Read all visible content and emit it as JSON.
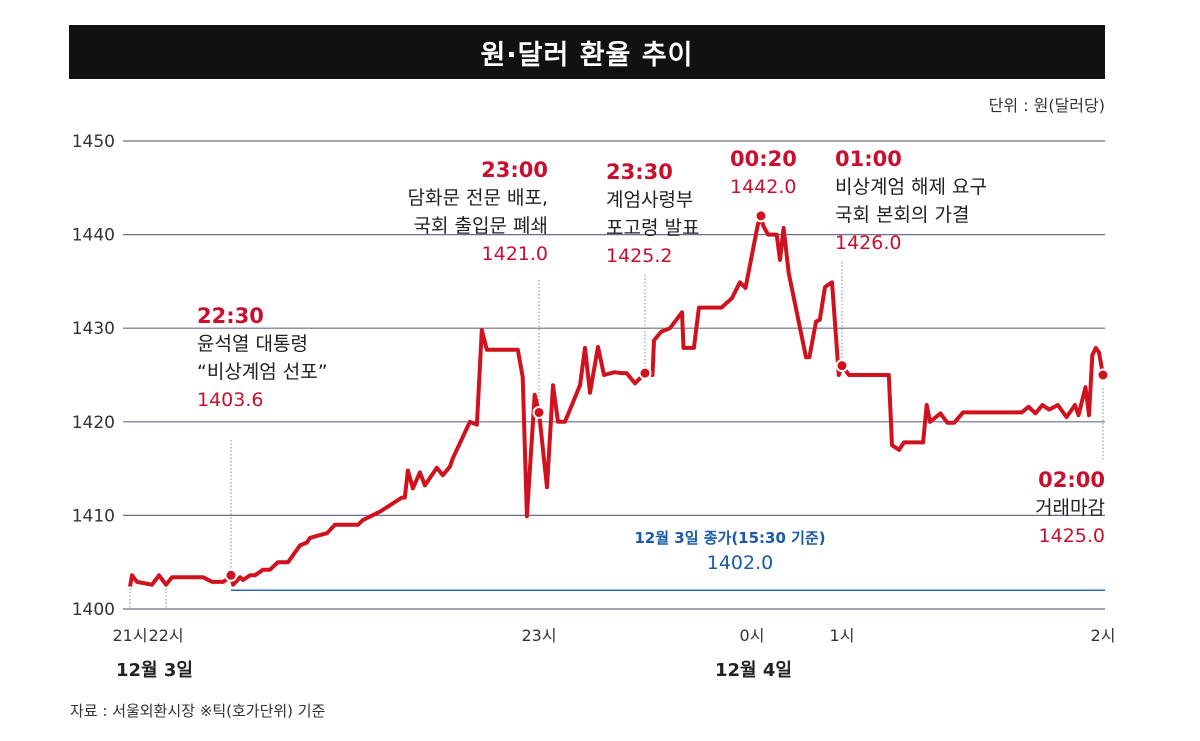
{
  "title": "원·달러 환율 추이",
  "unit_label": "단위 : 원(달러당)",
  "source": "자료 : 서울외환시장 ※틱(호가단위) 기준",
  "dates": [
    "12월 3일",
    "12월 4일"
  ],
  "colors": {
    "line": "#d0121e",
    "reference": "#2a6bb5",
    "grid": "#6e6c8c"
  },
  "annotations": [
    {
      "time": "22:30",
      "lines": [
        "윤석열 대통령",
        "“비상계엄 선포”"
      ],
      "value": "1403.6"
    },
    {
      "time": "23:00",
      "lines": [
        "담화문 전문 배포,",
        "국회 출입문 폐쇄"
      ],
      "value": "1421.0"
    },
    {
      "time": "23:30",
      "lines": [
        "계엄사령부",
        "포고령 발표"
      ],
      "value": "1425.2"
    },
    {
      "time": "00:20",
      "lines": [],
      "value": "1442.0"
    },
    {
      "time": "01:00",
      "lines": [
        "비상계엄 해제 요구",
        "국회 본회의 가결"
      ],
      "value": "1426.0"
    },
    {
      "time": "02:00",
      "lines": [
        "거래마감"
      ],
      "value": "1425.0"
    }
  ],
  "reference": {
    "label": "12월 3일 종가(15:30 기준)",
    "value": "1402.0"
  },
  "chart_data": {
    "type": "line",
    "title": "원·달러 환율 추이",
    "xlabel": "",
    "ylabel": "",
    "ylim": [
      1400,
      1450
    ],
    "yticks": [
      "1400",
      "1410",
      "1420",
      "1430",
      "1440",
      "1450"
    ],
    "xticks": [
      "21시",
      "22시",
      "23시",
      "0시",
      "1시",
      "2시"
    ],
    "grid": true,
    "reference_line": 1402.0,
    "highlight_points": [
      [
        "22:30:00",
        1403.6
      ],
      [
        "23:00:00",
        1421.0
      ],
      [
        "23:30:00",
        1425.2
      ],
      [
        "00:20:00",
        1442.0
      ],
      [
        "01:00:00",
        1426.0
      ],
      [
        "02:00:00",
        1425.0
      ]
    ],
    "series": [
      {
        "values": [
          [
            "21:00:00",
            1402.4
          ],
          [
            "21:03:20",
            1403.6
          ],
          [
            "21:11:40",
            1402.9
          ],
          [
            "21:36:40",
            1402.6
          ],
          [
            "21:48:20",
            1403.6
          ],
          [
            "22:00:00",
            1402.6
          ],
          [
            "22:02:46",
            1403.4
          ],
          [
            "22:17:05",
            1403.4
          ],
          [
            "22:21:14",
            1402.9
          ],
          [
            "22:26:18",
            1402.9
          ],
          [
            "22:29:32",
            1403.4
          ],
          [
            "22:30:00",
            1403.6
          ],
          [
            "22:30:12",
            1402.6
          ],
          [
            "22:30:53",
            1403.4
          ],
          [
            "22:31:10",
            1403.1
          ],
          [
            "22:31:51",
            1403.6
          ],
          [
            "22:32:20",
            1403.6
          ],
          [
            "22:33:07",
            1404.2
          ],
          [
            "22:33:48",
            1404.2
          ],
          [
            "22:34:34",
            1405.0
          ],
          [
            "22:35:33",
            1405.0
          ],
          [
            "22:36:43",
            1406.8
          ],
          [
            "22:37:24",
            1407.1
          ],
          [
            "22:37:41",
            1407.6
          ],
          [
            "22:38:40",
            1407.9
          ],
          [
            "22:39:21",
            1408.1
          ],
          [
            "22:40:07",
            1409.0
          ],
          [
            "22:42:22",
            1409.0
          ],
          [
            "22:42:51",
            1409.5
          ],
          [
            "22:44:30",
            1410.4
          ],
          [
            "22:46:39",
            1411.9
          ],
          [
            "22:46:56",
            1411.9
          ],
          [
            "22:47:14",
            1414.8
          ],
          [
            "22:47:43",
            1412.9
          ],
          [
            "22:48:24",
            1414.6
          ],
          [
            "22:48:53",
            1413.2
          ],
          [
            "22:50:03",
            1415.1
          ],
          [
            "22:50:38",
            1414.3
          ],
          [
            "22:51:19",
            1415.2
          ],
          [
            "22:51:36",
            1416.1
          ],
          [
            "22:53:16",
            1420.0
          ],
          [
            "22:53:57",
            1419.7
          ],
          [
            "22:54:26",
            1429.8
          ],
          [
            "22:54:55",
            1427.7
          ],
          [
            "22:57:56",
            1427.7
          ],
          [
            "22:58:25",
            1424.8
          ],
          [
            "22:58:49",
            1409.9
          ],
          [
            "22:59:35",
            1422.9
          ],
          [
            "23:00:00",
            1421.0
          ],
          [
            "23:02:16",
            1413.0
          ],
          [
            "23:03:58",
            1423.9
          ],
          [
            "23:05:23",
            1420.0
          ],
          [
            "23:07:22",
            1420.0
          ],
          [
            "23:11:36",
            1423.9
          ],
          [
            "23:13:01",
            1427.9
          ],
          [
            "23:14:26",
            1423.1
          ],
          [
            "23:16:42",
            1428.0
          ],
          [
            "23:18:24",
            1425.0
          ],
          [
            "23:21:22",
            1425.3
          ],
          [
            "23:23:12",
            1425.2
          ],
          [
            "23:24:47",
            1425.2
          ],
          [
            "23:27:10",
            1424.1
          ],
          [
            "23:30:00",
            1425.2
          ],
          [
            "23:32:06",
            1425.0
          ],
          [
            "23:32:31",
            1428.7
          ],
          [
            "23:34:29",
            1429.6
          ],
          [
            "23:37:00",
            1430.0
          ],
          [
            "23:40:22",
            1431.7
          ],
          [
            "23:40:47",
            1427.9
          ],
          [
            "23:43:43",
            1427.9
          ],
          [
            "23:45:07",
            1432.2
          ],
          [
            "23:51:25",
            1432.2
          ],
          [
            "23:54:22",
            1433.2
          ],
          [
            "23:56:36",
            1434.9
          ],
          [
            "23:58:10",
            1434.3
          ],
          [
            "00:12:40",
            1441.0
          ],
          [
            "00:20:00",
            1442.0
          ],
          [
            "00:21:00",
            1441.0
          ],
          [
            "00:23:27",
            1440.0
          ],
          [
            "00:27:45",
            1440.0
          ],
          [
            "00:29:23",
            1437.3
          ],
          [
            "00:31:10",
            1440.7
          ],
          [
            "00:33:41",
            1435.9
          ],
          [
            "00:42:14",
            1426.9
          ],
          [
            "00:43:55",
            1426.9
          ],
          [
            "00:47:10",
            1430.7
          ],
          [
            "00:49:03",
            1430.9
          ],
          [
            "00:51:37",
            1434.4
          ],
          [
            "00:55:05",
            1434.9
          ],
          [
            "00:58:26",
            1425.0
          ],
          [
            "01:00:00",
            1426.0
          ],
          [
            "01:01:37",
            1425.0
          ],
          [
            "01:10:46",
            1425.0
          ],
          [
            "01:11:30",
            1417.5
          ],
          [
            "01:13:06",
            1417.0
          ],
          [
            "01:14:15",
            1417.8
          ],
          [
            "01:18:38",
            1417.8
          ],
          [
            "01:19:28",
            1421.8
          ],
          [
            "01:20:14",
            1420.0
          ],
          [
            "01:22:38",
            1420.9
          ],
          [
            "01:24:13",
            1419.9
          ],
          [
            "01:25:49",
            1419.9
          ],
          [
            "01:27:49",
            1421.0
          ],
          [
            "01:41:18",
            1421.0
          ],
          [
            "01:42:54",
            1421.6
          ],
          [
            "01:44:29",
            1420.9
          ],
          [
            "01:46:04",
            1421.8
          ],
          [
            "01:47:36",
            1421.3
          ],
          [
            "01:49:37",
            1421.8
          ],
          [
            "01:51:37",
            1420.5
          ],
          [
            "01:53:34",
            1421.8
          ],
          [
            "01:54:22",
            1420.7
          ],
          [
            "01:55:58",
            1423.7
          ],
          [
            "01:56:47",
            1420.7
          ],
          [
            "01:57:33",
            1427.1
          ],
          [
            "01:58:21",
            1427.9
          ],
          [
            "01:59:05",
            1427.4
          ],
          [
            "02:00:00",
            1425.0
          ]
        ]
      }
    ]
  }
}
